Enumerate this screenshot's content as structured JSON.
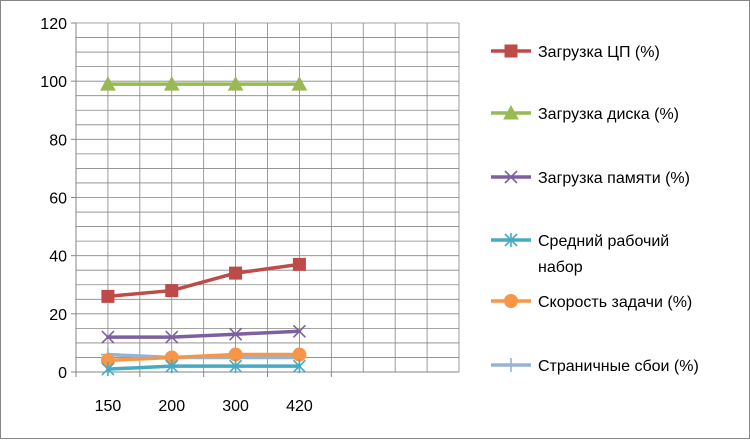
{
  "chart_data": {
    "type": "line",
    "title": "",
    "xlabel": "",
    "ylabel": "",
    "categories": [
      "150",
      "200",
      "300",
      "420"
    ],
    "ylim": [
      0,
      120
    ],
    "yticks": [
      0,
      20,
      40,
      60,
      80,
      100,
      120
    ],
    "grid": true,
    "legend_position": "right",
    "series": [
      {
        "name": "Загрузка ЦП (%)",
        "color": "#be4b48",
        "marker": "square",
        "values": [
          26,
          28,
          34,
          37
        ]
      },
      {
        "name": "Загрузка диска (%)",
        "color": "#98b954",
        "marker": "triangle",
        "values": [
          99,
          99,
          99,
          99
        ]
      },
      {
        "name": "Загрузка памяти (%)",
        "color": "#7d60a0",
        "marker": "x",
        "values": [
          12,
          12,
          13,
          14
        ]
      },
      {
        "name": "Средний рабочий набор",
        "name_lines": [
          "Средний рабочий",
          "набор"
        ],
        "color": "#46aac5",
        "marker": "star",
        "values": [
          1,
          2,
          2,
          2
        ]
      },
      {
        "name": "Скорость задачи (%)",
        "color": "#f79646",
        "marker": "circle",
        "values": [
          4,
          5,
          6,
          6
        ]
      },
      {
        "name": "Страничные сбои  (%)",
        "color": "#95b3d7",
        "marker": "plus",
        "values": [
          6,
          5,
          5,
          5
        ]
      }
    ]
  }
}
